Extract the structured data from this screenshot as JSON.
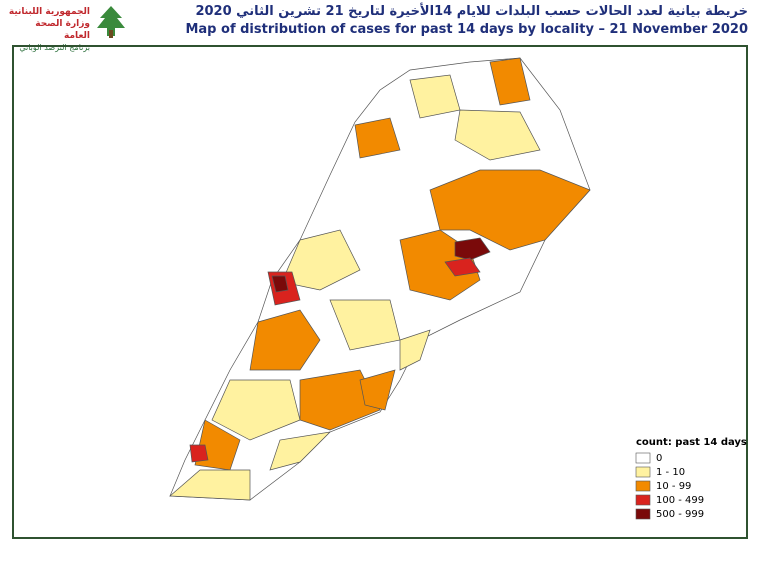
{
  "header": {
    "logo_lines": [
      "الجمهورية اللبنانية",
      "وزارة الصحة العامة",
      "برنامج الترصد الوبائي"
    ],
    "title_ar": "خريطة بيانية لعدد الحالات حسب البلدات للايام 14الأخيرة لتاريخ 21 تشرين الثاني 2020",
    "title_en": "Map of distribution of cases for past 14 days by locality – 21 November 2020"
  },
  "legend": {
    "title": "count: past 14 days",
    "items": [
      {
        "label": "0",
        "color": "#ffffff"
      },
      {
        "label": "1 - 10",
        "color": "#fff2a0"
      },
      {
        "label": "10 - 99",
        "color": "#f28a00"
      },
      {
        "label": "100 - 499",
        "color": "#d9231e"
      },
      {
        "label": "500 - 999",
        "color": "#7a0a0a"
      }
    ]
  }
}
